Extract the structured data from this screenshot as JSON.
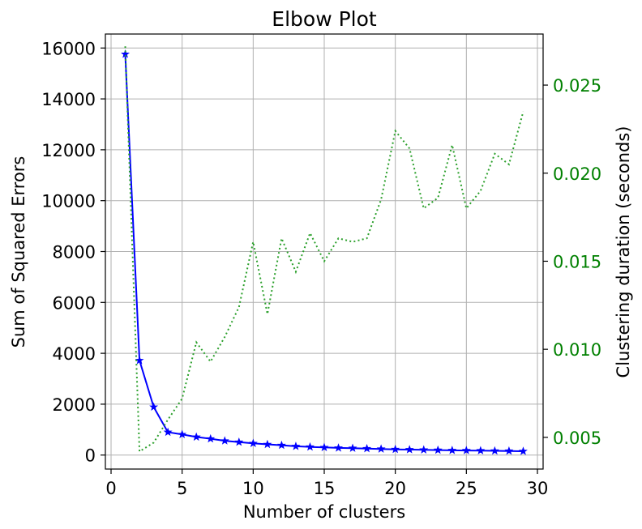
{
  "chart_data": {
    "type": "line",
    "title": "Elbow Plot",
    "xlabel": "Number of clusters",
    "ylabel": "Sum of Squared Errors",
    "y2label": "Clustering duration (seconds)",
    "xlim": [
      -0.4,
      30.4
    ],
    "ylim": [
      -550,
      16550
    ],
    "y2lim": [
      0.0032,
      0.0279
    ],
    "xticks": [
      0,
      5,
      10,
      15,
      20,
      25,
      30
    ],
    "yticks": [
      0,
      2000,
      4000,
      6000,
      8000,
      10000,
      12000,
      14000,
      16000
    ],
    "y2ticks": [
      0.005,
      0.01,
      0.015,
      0.02,
      0.025
    ],
    "y2tick_labels": [
      "0.005",
      "0.010",
      "0.015",
      "0.020",
      "0.025"
    ],
    "grid": true,
    "x": [
      1,
      2,
      3,
      4,
      5,
      6,
      7,
      8,
      9,
      10,
      11,
      12,
      13,
      14,
      15,
      16,
      17,
      18,
      19,
      20,
      21,
      22,
      23,
      24,
      25,
      26,
      27,
      28,
      29
    ],
    "series": [
      {
        "axis": "left",
        "color": "#0000ff",
        "style": "solid",
        "marker": "star",
        "values": [
          15760,
          3720,
          1890,
          900,
          810,
          710,
          640,
          560,
          510,
          460,
          420,
          385,
          345,
          320,
          300,
          280,
          270,
          255,
          240,
          225,
          215,
          205,
          195,
          185,
          180,
          175,
          165,
          160,
          150
        ]
      },
      {
        "axis": "right",
        "color": "#2ca02c",
        "style": "dotted",
        "values": [
          0.0272,
          0.0042,
          0.0047,
          0.006,
          0.0072,
          0.0104,
          0.0093,
          0.0107,
          0.0124,
          0.0161,
          0.012,
          0.0163,
          0.0144,
          0.0166,
          0.015,
          0.0163,
          0.0161,
          0.0163,
          0.0185,
          0.0224,
          0.0214,
          0.018,
          0.0186,
          0.0216,
          0.018,
          0.019,
          0.0211,
          0.0205,
          0.0235
        ]
      }
    ],
    "colors": {
      "axis": "#000000",
      "grid": "#b0b0b0",
      "right_tick_text": "#008000",
      "right_label_text": "#2ca02c"
    }
  }
}
